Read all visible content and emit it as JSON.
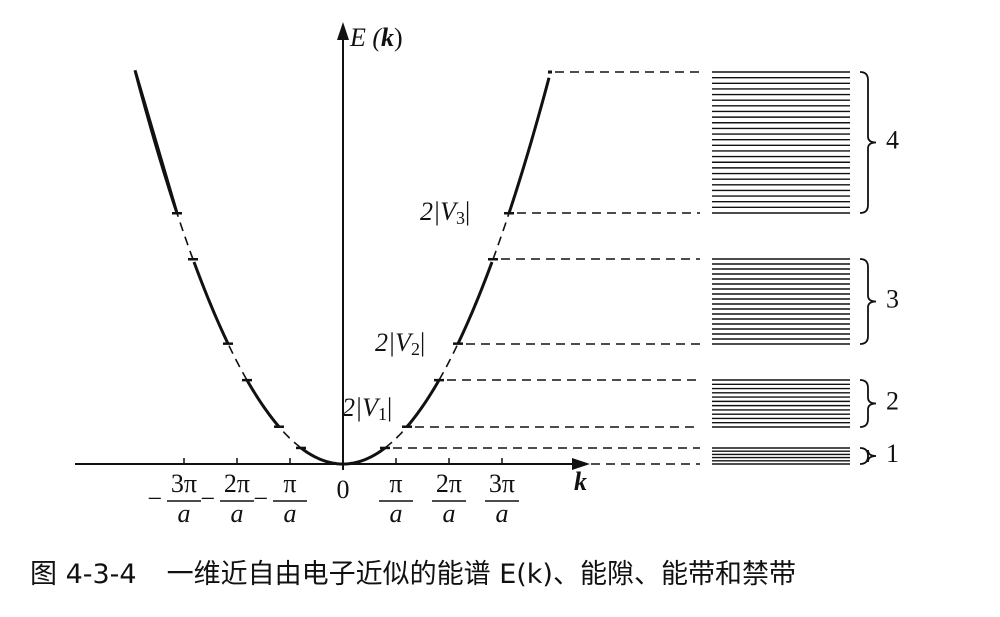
{
  "axes": {
    "y_label": {
      "prefix": "E (",
      "variable": "k",
      "suffix": ")"
    },
    "x_label": "k",
    "origin_label": "0"
  },
  "x_ticks": [
    {
      "sign": "−",
      "numerator": "3π",
      "denominator": "a"
    },
    {
      "sign": "−",
      "numerator": "2π",
      "denominator": "a"
    },
    {
      "sign": "−",
      "numerator": "π",
      "denominator": "a"
    },
    {
      "numerator": "π",
      "denominator": "a"
    },
    {
      "numerator": "2π",
      "denominator": "a"
    },
    {
      "numerator": "3π",
      "denominator": "a"
    }
  ],
  "gap_labels": [
    {
      "prefix": "2|V",
      "subscript": "1",
      "suffix": "|"
    },
    {
      "prefix": "2|V",
      "subscript": "2",
      "suffix": "|"
    },
    {
      "prefix": "2|V",
      "subscript": "3",
      "suffix": "|"
    }
  ],
  "band_labels": [
    "1",
    "2",
    "3",
    "4"
  ],
  "caption": {
    "figure_number": "图 4-3-4",
    "text": "一维近自由电子近似的能谱 E(k)、能隙、能带和禁带"
  }
}
